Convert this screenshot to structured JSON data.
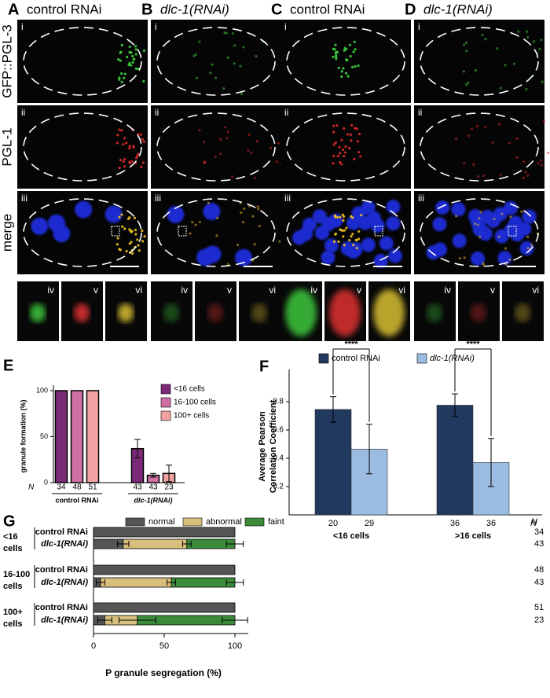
{
  "figure": {
    "panels": [
      {
        "letter": "A",
        "title": "control RNAi",
        "italic": false
      },
      {
        "letter": "B",
        "title": "dlc-1(RNAi)",
        "italic": true
      },
      {
        "letter": "C",
        "title": "control RNAi",
        "italic": false
      },
      {
        "letter": "D",
        "title": "dlc-1(RNAi)",
        "italic": true
      }
    ],
    "row_labels": [
      "GFP::PGL-3",
      "PGL-1",
      "merge"
    ],
    "image_labels": [
      "i",
      "ii",
      "iii"
    ],
    "inset_labels": [
      "iv",
      "v",
      "vi"
    ]
  },
  "chart_data": [
    {
      "type": "bar",
      "panel": "E",
      "y_label": "granule formation (%)",
      "categories": [
        "control RNAi",
        "dlc-1(RNAi)"
      ],
      "italic": [
        false,
        true
      ],
      "series": [
        {
          "name": "<16 cells",
          "color": "#7b2a78",
          "values": [
            100,
            37
          ],
          "errors": [
            null,
            10
          ],
          "n": [
            34,
            43
          ]
        },
        {
          "name": "16-100 cells",
          "color": "#cf6fa3",
          "values": [
            100,
            8
          ],
          "errors": [
            null,
            2
          ],
          "n": [
            48,
            43
          ]
        },
        {
          "name": "100+ cells",
          "color": "#f2a2a2",
          "values": [
            100,
            10
          ],
          "errors": [
            null,
            9
          ],
          "n": [
            51,
            23
          ]
        }
      ],
      "n_label": "N",
      "ylim": [
        0,
        100
      ],
      "yticks": [
        0,
        50,
        100
      ]
    },
    {
      "type": "bar",
      "panel": "F",
      "y_label": [
        "Average Pearson",
        "Correlation Coefficient"
      ],
      "categories": [
        "<16 cells",
        ">16 cells"
      ],
      "series": [
        {
          "name": "control RNAi",
          "color": "#21395f",
          "values": [
            0.745,
            0.775
          ],
          "errors": [
            0.09,
            0.08
          ],
          "n": [
            20,
            36
          ],
          "italic": false
        },
        {
          "name": "dlc-1(RNAi)",
          "color": "#9bbbe0",
          "values": [
            0.465,
            0.37
          ],
          "errors": [
            0.175,
            0.17
          ],
          "n": [
            29,
            36
          ],
          "italic": true
        }
      ],
      "significance": [
        "****",
        "****"
      ],
      "n_label": "N",
      "ylim": [
        0,
        1
      ],
      "yticks": [
        0.2,
        0.4,
        0.6,
        0.8
      ]
    },
    {
      "type": "hbar-stacked",
      "panel": "G",
      "x_label": "P granule segregation (%)",
      "categories": [
        "control RNAi",
        "dlc-1(RNAi)",
        "control RNAi",
        "dlc-1(RNAi)",
        "control RNAi",
        "dlc-1(RNAi)"
      ],
      "italic": [
        false,
        true,
        false,
        true,
        false,
        true
      ],
      "groups": [
        [
          "<16",
          "cells"
        ],
        [
          "16-100",
          "cells"
        ],
        [
          "100+",
          "cells"
        ]
      ],
      "series": [
        {
          "name": "normal",
          "color": "#555555",
          "values": [
            100,
            21,
            100,
            5,
            100,
            8
          ],
          "errors": [
            null,
            4,
            null,
            3,
            null,
            5
          ]
        },
        {
          "name": "abnormal",
          "color": "#d9bf7d",
          "values": [
            0,
            45,
            0,
            50,
            0,
            23
          ],
          "errors": [
            null,
            3,
            null,
            3,
            null,
            13
          ]
        },
        {
          "name": "faint",
          "color": "#3b8b3b",
          "values": [
            0,
            34,
            0,
            45,
            0,
            69
          ],
          "errors": [
            null,
            6,
            null,
            6,
            null,
            9
          ]
        }
      ],
      "n": [
        34,
        43,
        48,
        43,
        51,
        23
      ],
      "n_label": "N",
      "xlim": [
        0,
        100
      ],
      "xticks": [
        0,
        50,
        100
      ]
    }
  ]
}
